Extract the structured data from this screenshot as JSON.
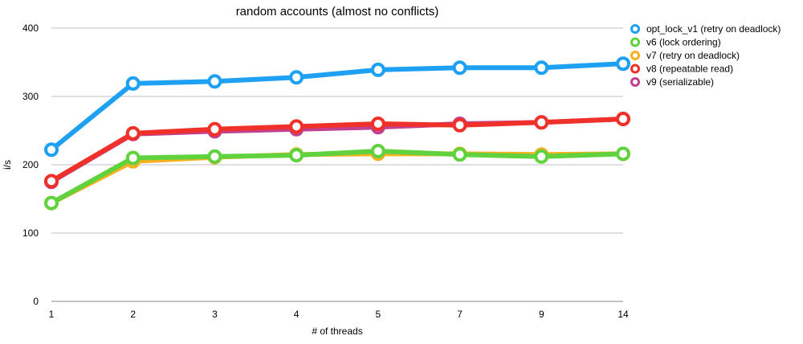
{
  "chart_data": {
    "type": "line",
    "title": "random accounts (almost no conflicts)",
    "xlabel": "# of threads",
    "ylabel": "i/s",
    "categories": [
      "1",
      "2",
      "3",
      "4",
      "5",
      "7",
      "9",
      "14"
    ],
    "yticks": [
      0,
      100,
      200,
      300,
      400
    ],
    "ylim": [
      0,
      400
    ],
    "grid": true,
    "legend_position": "top-right",
    "series": [
      {
        "name": "v9 (serializable)",
        "color": "#c2418f",
        "values": [
          175,
          245,
          249,
          252,
          255,
          260,
          262,
          267
        ]
      },
      {
        "name": "v7 (retry on deadlock)",
        "color": "#f5b120",
        "values": [
          144,
          205,
          211,
          215,
          216,
          216,
          215,
          216
        ]
      },
      {
        "name": "v6 (lock ordering)",
        "color": "#5fd23e",
        "values": [
          144,
          210,
          212,
          214,
          220,
          215,
          212,
          216
        ]
      },
      {
        "name": "v8 (repeatable read)",
        "color": "#f0312a",
        "values": [
          176,
          246,
          252,
          256,
          260,
          258,
          262,
          267
        ]
      },
      {
        "name": "opt_lock_v1 (retry on deadlock)",
        "color": "#1ea1f2",
        "values": [
          222,
          319,
          322,
          328,
          339,
          342,
          342,
          348
        ]
      }
    ],
    "legend_order": [
      4,
      2,
      1,
      3,
      0
    ]
  }
}
